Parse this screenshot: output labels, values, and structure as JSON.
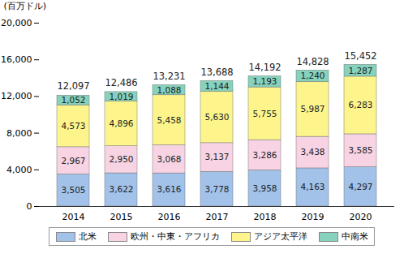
{
  "chart_data": {
    "type": "bar",
    "stacked": true,
    "data_labels": true,
    "grid": false,
    "legend": "bottom",
    "y_label": "(百万ドル)",
    "categories": [
      "2014",
      "2015",
      "2016",
      "2017",
      "2018",
      "2019",
      "2020"
    ],
    "ylim": [
      0,
      20000
    ],
    "yticks": [
      0,
      {
        "value": 4000,
        "label": "4,000"
      },
      {
        "value": 8000,
        "label": "8,000"
      },
      {
        "value": 12000,
        "label": "12,000"
      },
      {
        "value": 16000,
        "label": "16,000"
      },
      {
        "value": 20000,
        "label": "20,000"
      }
    ],
    "series": [
      {
        "name": "北米",
        "color": "#a3c2ea",
        "values": [
          3505,
          3622,
          3616,
          3778,
          3958,
          4163,
          4297
        ],
        "value_labels": [
          "3,505",
          "3,622",
          "3,616",
          "3,778",
          "3,958",
          "4,163",
          "4,297"
        ]
      },
      {
        "name": "欧州・中東・アフリカ",
        "color": "#f7d3e3",
        "values": [
          2967,
          2950,
          3068,
          3137,
          3286,
          3438,
          3585
        ],
        "value_labels": [
          "2,967",
          "2,950",
          "3,068",
          "3,137",
          "3,286",
          "3,438",
          "3,585"
        ]
      },
      {
        "name": "アジア太平洋",
        "color": "#fdf58c",
        "values": [
          4573,
          4896,
          5458,
          5630,
          5755,
          5987,
          6283
        ],
        "value_labels": [
          "4,573",
          "4,896",
          "5,458",
          "5,630",
          "5,755",
          "5,987",
          "6,283"
        ]
      },
      {
        "name": "中南米",
        "color": "#86d2bd",
        "values": [
          1052,
          1019,
          1088,
          1144,
          1193,
          1240,
          1287
        ],
        "value_labels": [
          "1,052",
          "1,019",
          "1,088",
          "1,144",
          "1,193",
          "1,240",
          "1,287"
        ]
      }
    ],
    "totals": {
      "values": [
        12097,
        12486,
        13231,
        13688,
        14192,
        14828,
        15452
      ],
      "value_labels": [
        "12,097",
        "12,486",
        "13,231",
        "13,688",
        "14,192",
        "14,828",
        "15,452"
      ]
    }
  }
}
